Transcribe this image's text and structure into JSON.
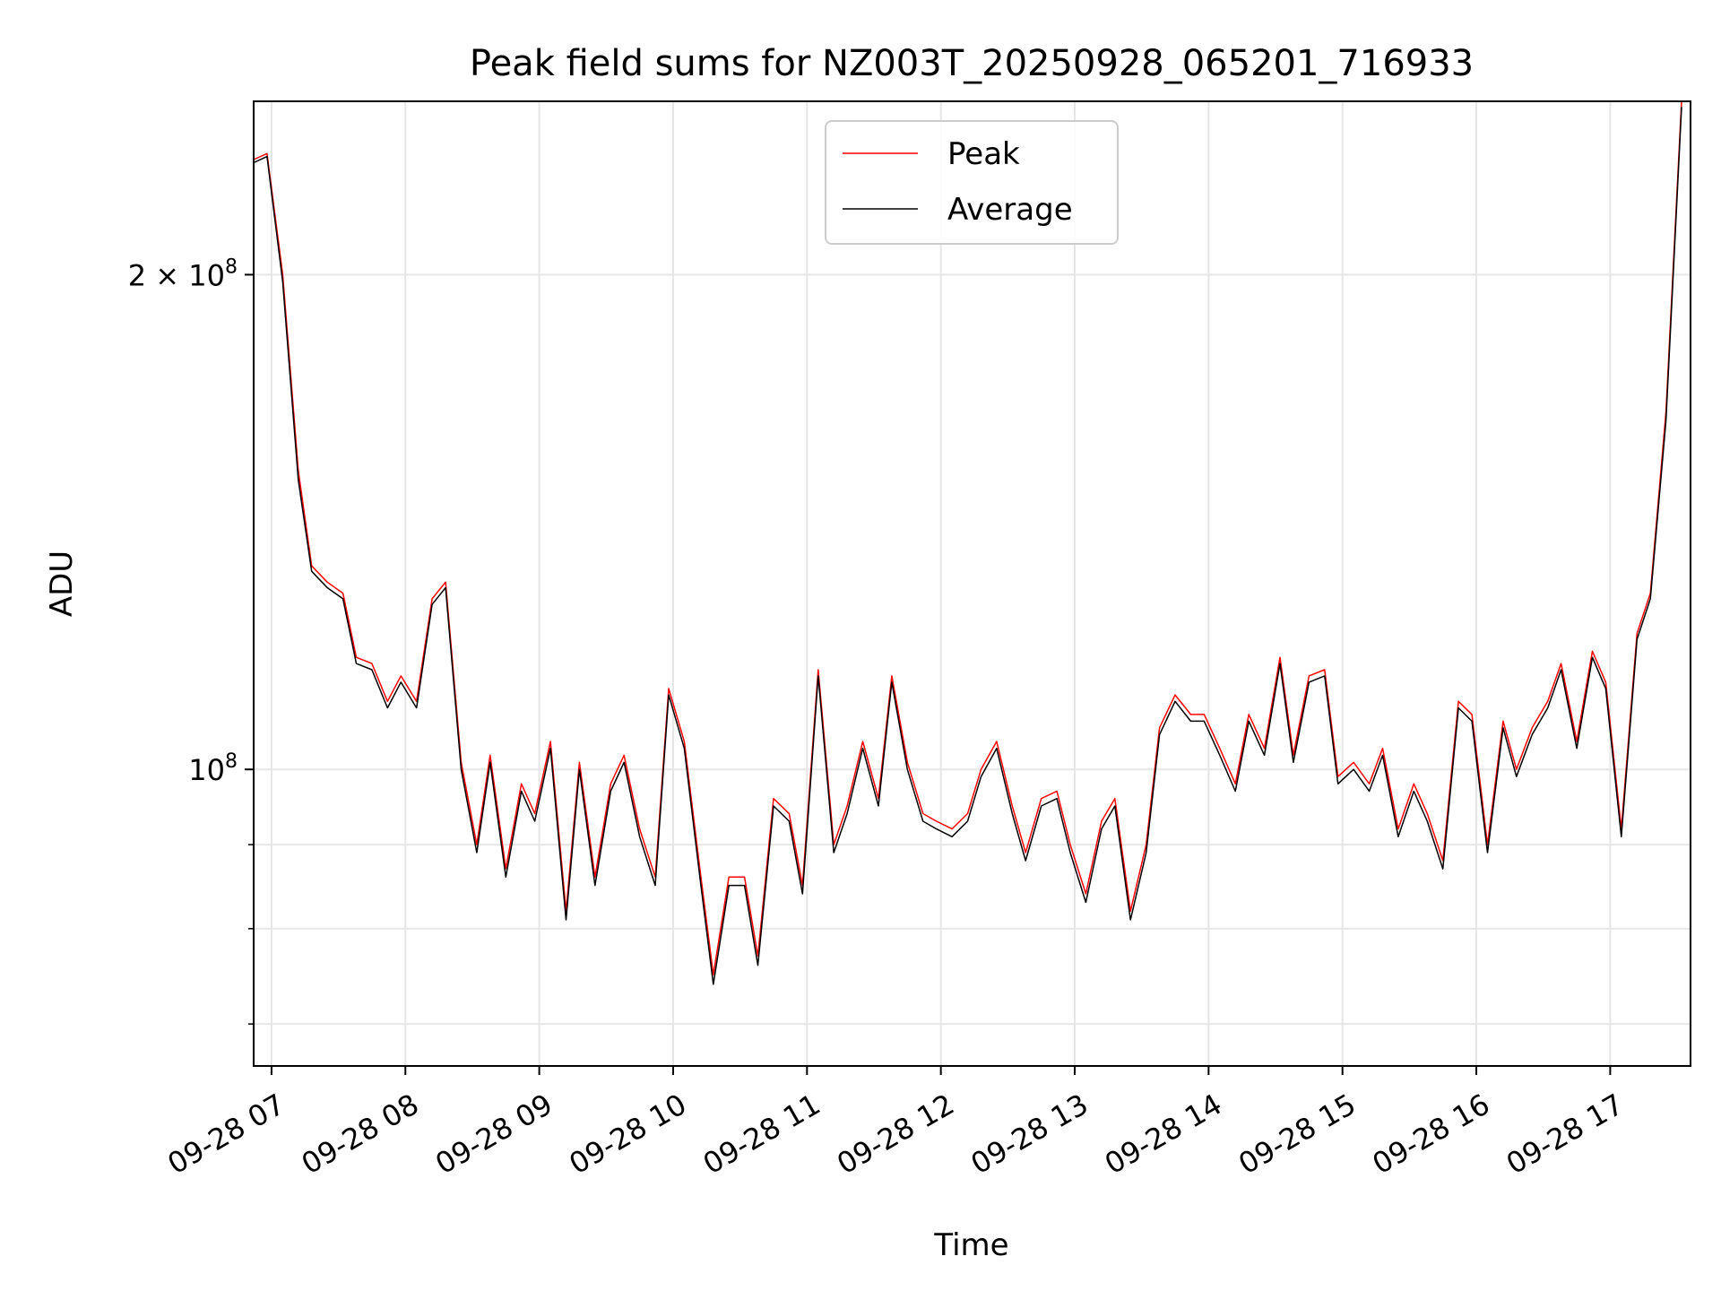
{
  "chart_data": {
    "type": "line",
    "title": "Peak field sums for NZ003T_20250928_065201_716933",
    "xlabel": "Time",
    "ylabel": "ADU",
    "y_scale": "log",
    "ylim": [
      66000000,
      255000000
    ],
    "xlim": [
      "2025-09-28 06:52",
      "2025-09-28 17:36"
    ],
    "x_ticks": [
      "09-28 07",
      "09-28 08",
      "09-28 09",
      "09-28 10",
      "09-28 11",
      "09-28 12",
      "09-28 13",
      "09-28 14",
      "09-28 15",
      "09-28 16",
      "09-28 17"
    ],
    "y_ticks": [
      {
        "value": 200000000,
        "base": "2 × 10",
        "exp": "8"
      },
      {
        "value": 100000000,
        "base": "10",
        "exp": "8"
      }
    ],
    "y_minor_ticks": [
      70000000,
      80000000,
      90000000
    ],
    "grid": true,
    "legend": {
      "position": "top-center",
      "entries": [
        "Peak",
        "Average"
      ]
    },
    "series": [
      {
        "name": "Peak",
        "color": "#ff0000",
        "x": [
          "06:52",
          "06:58",
          "07:05",
          "07:12",
          "07:18",
          "07:25",
          "07:32",
          "07:38",
          "07:45",
          "07:52",
          "07:58",
          "08:05",
          "08:12",
          "08:18",
          "08:25",
          "08:32",
          "08:38",
          "08:45",
          "08:52",
          "08:58",
          "09:05",
          "09:12",
          "09:18",
          "09:25",
          "09:32",
          "09:38",
          "09:45",
          "09:52",
          "09:58",
          "10:05",
          "10:12",
          "10:18",
          "10:25",
          "10:32",
          "10:38",
          "10:45",
          "10:52",
          "10:58",
          "11:05",
          "11:12",
          "11:18",
          "11:25",
          "11:32",
          "11:38",
          "11:45",
          "11:52",
          "11:58",
          "12:05",
          "12:12",
          "12:18",
          "12:25",
          "12:32",
          "12:38",
          "12:45",
          "12:52",
          "12:58",
          "13:05",
          "13:12",
          "13:18",
          "13:25",
          "13:32",
          "13:38",
          "13:45",
          "13:52",
          "13:58",
          "14:05",
          "14:12",
          "14:18",
          "14:25",
          "14:32",
          "14:38",
          "14:45",
          "14:52",
          "14:58",
          "15:05",
          "15:12",
          "15:18",
          "15:25",
          "15:32",
          "15:38",
          "15:45",
          "15:52",
          "15:58",
          "16:05",
          "16:12",
          "16:18",
          "16:25",
          "16:32",
          "16:38",
          "16:45",
          "16:52",
          "16:58",
          "17:05",
          "17:12",
          "17:18",
          "17:25",
          "17:32"
        ],
        "y": [
          235000000,
          237000000,
          200000000,
          152000000,
          133000000,
          130000000,
          128000000,
          117000000,
          116000000,
          110000000,
          114000000,
          110000000,
          127000000,
          130000000,
          101000000,
          90000000,
          102000000,
          87000000,
          98000000,
          94000000,
          104000000,
          82000000,
          101000000,
          86000000,
          98000000,
          102000000,
          92000000,
          86000000,
          112000000,
          104000000,
          87000000,
          75000000,
          86000000,
          86000000,
          77000000,
          96000000,
          94000000,
          85000000,
          115000000,
          90000000,
          95000000,
          104000000,
          96000000,
          114000000,
          101000000,
          94000000,
          93000000,
          92000000,
          94000000,
          100000000,
          104000000,
          95000000,
          89000000,
          96000000,
          97000000,
          90000000,
          84000000,
          93000000,
          96000000,
          82000000,
          90000000,
          106000000,
          111000000,
          108000000,
          108000000,
          103000000,
          98000000,
          108000000,
          103000000,
          117000000,
          102000000,
          114000000,
          115000000,
          99000000,
          101000000,
          98000000,
          103000000,
          92000000,
          98000000,
          94000000,
          88000000,
          110000000,
          108000000,
          90000000,
          107000000,
          100000000,
          106000000,
          110000000,
          116000000,
          104000000,
          118000000,
          113000000,
          92000000,
          121000000,
          128000000,
          165000000,
          255000000
        ]
      },
      {
        "name": "Average",
        "color": "#000000",
        "x": [
          "06:52",
          "06:58",
          "07:05",
          "07:12",
          "07:18",
          "07:25",
          "07:32",
          "07:38",
          "07:45",
          "07:52",
          "07:58",
          "08:05",
          "08:12",
          "08:18",
          "08:25",
          "08:32",
          "08:38",
          "08:45",
          "08:52",
          "08:58",
          "09:05",
          "09:12",
          "09:18",
          "09:25",
          "09:32",
          "09:38",
          "09:45",
          "09:52",
          "09:58",
          "10:05",
          "10:12",
          "10:18",
          "10:25",
          "10:32",
          "10:38",
          "10:45",
          "10:52",
          "10:58",
          "11:05",
          "11:12",
          "11:18",
          "11:25",
          "11:32",
          "11:38",
          "11:45",
          "11:52",
          "11:58",
          "12:05",
          "12:12",
          "12:18",
          "12:25",
          "12:32",
          "12:38",
          "12:45",
          "12:52",
          "12:58",
          "13:05",
          "13:12",
          "13:18",
          "13:25",
          "13:32",
          "13:38",
          "13:45",
          "13:52",
          "13:58",
          "14:05",
          "14:12",
          "14:18",
          "14:25",
          "14:32",
          "14:38",
          "14:45",
          "14:52",
          "14:58",
          "15:05",
          "15:12",
          "15:18",
          "15:25",
          "15:32",
          "15:38",
          "15:45",
          "15:52",
          "15:58",
          "16:05",
          "16:12",
          "16:18",
          "16:25",
          "16:32",
          "16:38",
          "16:45",
          "16:52",
          "16:58",
          "17:05",
          "17:12",
          "17:18",
          "17:25",
          "17:32"
        ],
        "y": [
          234000000,
          236000000,
          198000000,
          150000000,
          132000000,
          129000000,
          127000000,
          116000000,
          115000000,
          109000000,
          113000000,
          109000000,
          126000000,
          129000000,
          100000000,
          89000000,
          101000000,
          86000000,
          97000000,
          93000000,
          103000000,
          81000000,
          100000000,
          85000000,
          97000000,
          101000000,
          91000000,
          85000000,
          111000000,
          103000000,
          86000000,
          74000000,
          85000000,
          85000000,
          76000000,
          95000000,
          93000000,
          84000000,
          114000000,
          89000000,
          94000000,
          103000000,
          95000000,
          113000000,
          100000000,
          93000000,
          92000000,
          91000000,
          93000000,
          99000000,
          103000000,
          94000000,
          88000000,
          95000000,
          96000000,
          89000000,
          83000000,
          92000000,
          95000000,
          81000000,
          89000000,
          105000000,
          110000000,
          107000000,
          107000000,
          102000000,
          97000000,
          107000000,
          102000000,
          116000000,
          101000000,
          113000000,
          114000000,
          98000000,
          100000000,
          97000000,
          102000000,
          91000000,
          97000000,
          93000000,
          87000000,
          109000000,
          107000000,
          89000000,
          106000000,
          99000000,
          105000000,
          109000000,
          115000000,
          103000000,
          117000000,
          112000000,
          91000000,
          120000000,
          127000000,
          163000000,
          253000000
        ]
      }
    ]
  }
}
